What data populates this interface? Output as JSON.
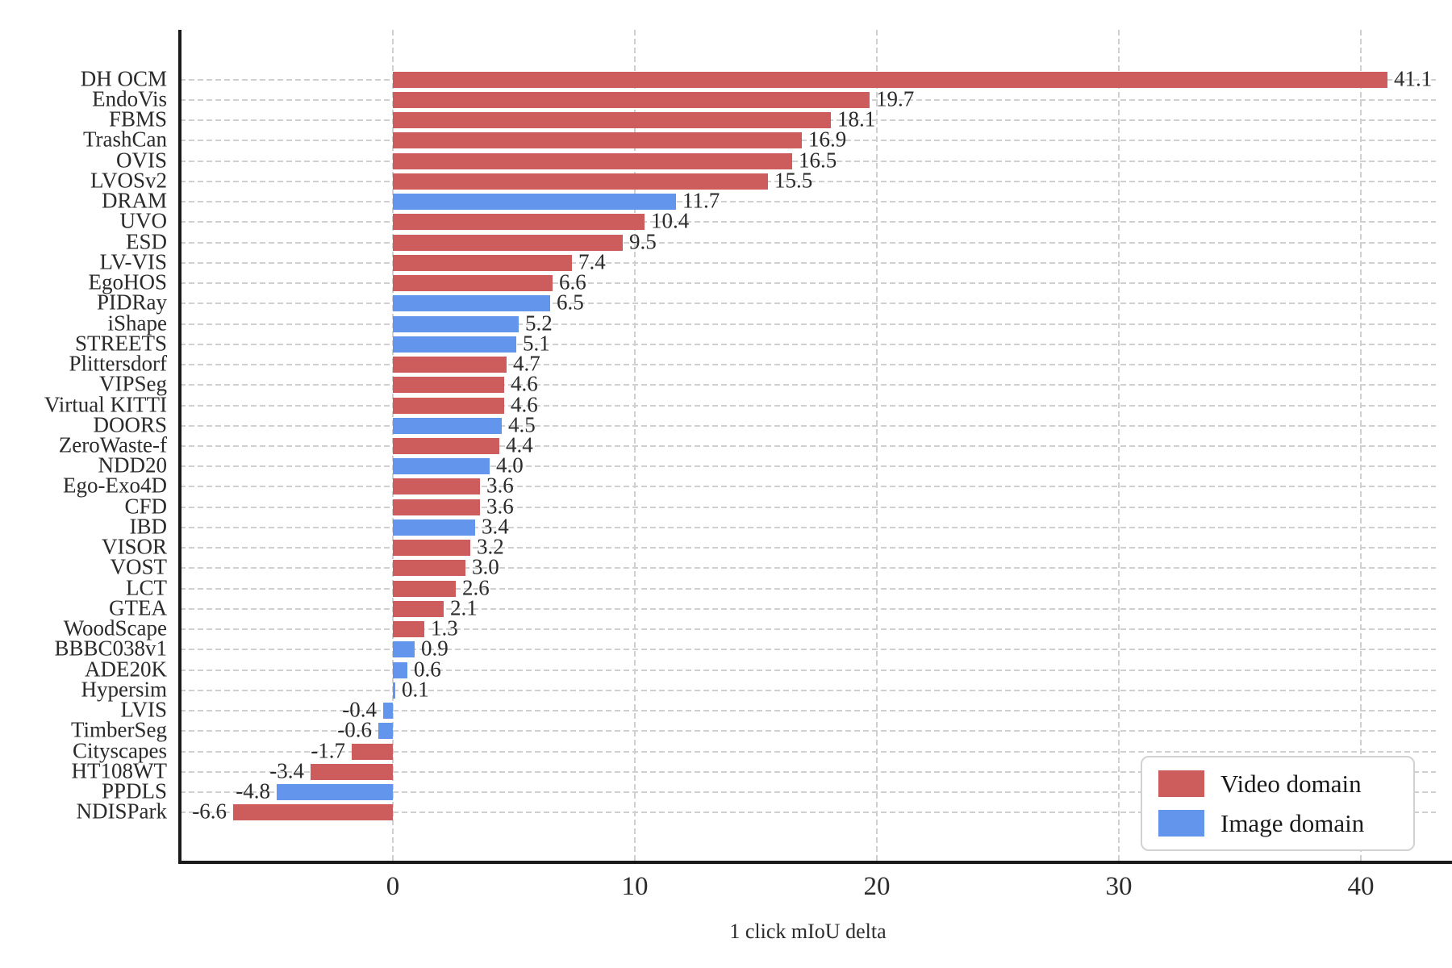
{
  "colors": {
    "video": "#CD5C5C",
    "image": "#6495ED",
    "grid": "#d0d0d0",
    "spine": "#1a1a1a",
    "text": "#2b2b2b",
    "legend_border": "#d2d2d2",
    "background": "#ffffff"
  },
  "chart_data": {
    "type": "bar",
    "orientation": "horizontal",
    "title": "",
    "xlabel": "1 click mIoU delta",
    "ylabel": "",
    "xlim": [
      -8.8,
      43.1
    ],
    "xticks": [
      "0",
      "10",
      "20",
      "30",
      "40"
    ],
    "xtick_values": [
      0,
      10,
      20,
      30,
      40
    ],
    "grid": "dashed gridlines on both axes",
    "legend": {
      "position": "lower right",
      "entries": [
        {
          "label": "Video domain",
          "color": "#CD5C5C",
          "domain": "video"
        },
        {
          "label": "Image domain",
          "color": "#6495ED",
          "domain": "image"
        }
      ]
    },
    "bars": [
      {
        "label": "DH OCM",
        "value": 41.1,
        "display": "41.1",
        "domain": "video"
      },
      {
        "label": "EndoVis",
        "value": 19.7,
        "display": "19.7",
        "domain": "video"
      },
      {
        "label": "FBMS",
        "value": 18.1,
        "display": "18.1",
        "domain": "video"
      },
      {
        "label": "TrashCan",
        "value": 16.9,
        "display": "16.9",
        "domain": "video"
      },
      {
        "label": "OVIS",
        "value": 16.5,
        "display": "16.5",
        "domain": "video"
      },
      {
        "label": "LVOSv2",
        "value": 15.5,
        "display": "15.5",
        "domain": "video"
      },
      {
        "label": "DRAM",
        "value": 11.7,
        "display": "11.7",
        "domain": "image"
      },
      {
        "label": "UVO",
        "value": 10.4,
        "display": "10.4",
        "domain": "video"
      },
      {
        "label": "ESD",
        "value": 9.5,
        "display": "9.5",
        "domain": "video"
      },
      {
        "label": "LV-VIS",
        "value": 7.4,
        "display": "7.4",
        "domain": "video"
      },
      {
        "label": "EgoHOS",
        "value": 6.6,
        "display": "6.6",
        "domain": "video"
      },
      {
        "label": "PIDRay",
        "value": 6.5,
        "display": "6.5",
        "domain": "image"
      },
      {
        "label": "iShape",
        "value": 5.2,
        "display": "5.2",
        "domain": "image"
      },
      {
        "label": "STREETS",
        "value": 5.1,
        "display": "5.1",
        "domain": "image"
      },
      {
        "label": "Plittersdorf",
        "value": 4.7,
        "display": "4.7",
        "domain": "video"
      },
      {
        "label": "VIPSeg",
        "value": 4.6,
        "display": "4.6",
        "domain": "video"
      },
      {
        "label": "Virtual KITTI",
        "value": 4.6,
        "display": "4.6",
        "domain": "video"
      },
      {
        "label": "DOORS",
        "value": 4.5,
        "display": "4.5",
        "domain": "image"
      },
      {
        "label": "ZeroWaste-f",
        "value": 4.4,
        "display": "4.4",
        "domain": "video"
      },
      {
        "label": "NDD20",
        "value": 4.0,
        "display": "4.0",
        "domain": "image"
      },
      {
        "label": "Ego-Exo4D",
        "value": 3.6,
        "display": "3.6",
        "domain": "video"
      },
      {
        "label": "CFD",
        "value": 3.6,
        "display": "3.6",
        "domain": "video"
      },
      {
        "label": "IBD",
        "value": 3.4,
        "display": "3.4",
        "domain": "image"
      },
      {
        "label": "VISOR",
        "value": 3.2,
        "display": "3.2",
        "domain": "video"
      },
      {
        "label": "VOST",
        "value": 3.0,
        "display": "3.0",
        "domain": "video"
      },
      {
        "label": "LCT",
        "value": 2.6,
        "display": "2.6",
        "domain": "video"
      },
      {
        "label": "GTEA",
        "value": 2.1,
        "display": "2.1",
        "domain": "video"
      },
      {
        "label": "WoodScape",
        "value": 1.3,
        "display": "1.3",
        "domain": "video"
      },
      {
        "label": "BBBC038v1",
        "value": 0.9,
        "display": "0.9",
        "domain": "image"
      },
      {
        "label": "ADE20K",
        "value": 0.6,
        "display": "0.6",
        "domain": "image"
      },
      {
        "label": "Hypersim",
        "value": 0.1,
        "display": "0.1",
        "domain": "image"
      },
      {
        "label": "LVIS",
        "value": -0.4,
        "display": "-0.4",
        "domain": "image"
      },
      {
        "label": "TimberSeg",
        "value": -0.6,
        "display": "-0.6",
        "domain": "image"
      },
      {
        "label": "Cityscapes",
        "value": -1.7,
        "display": "-1.7",
        "domain": "video"
      },
      {
        "label": "HT108WT",
        "value": -3.4,
        "display": "-3.4",
        "domain": "video"
      },
      {
        "label": "PPDLS",
        "value": -4.8,
        "display": "-4.8",
        "domain": "image"
      },
      {
        "label": "NDISPark",
        "value": -6.6,
        "display": "-6.6",
        "domain": "video"
      }
    ]
  }
}
